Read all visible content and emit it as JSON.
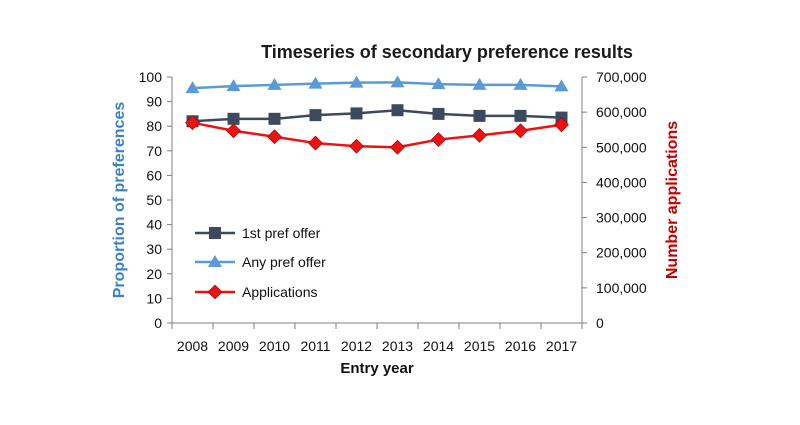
{
  "chart_data": {
    "type": "line",
    "title": "Timeseries of secondary preference results",
    "xlabel": "Entry year",
    "ylabel_left": "Proportion of preferences",
    "ylabel_right": "Number applications",
    "categories": [
      "2008",
      "2009",
      "2010",
      "2011",
      "2012",
      "2013",
      "2014",
      "2015",
      "2016",
      "2017"
    ],
    "ylim_left": [
      0,
      100
    ],
    "yticks_left": [
      "0",
      "10",
      "20",
      "30",
      "40",
      "50",
      "60",
      "70",
      "80",
      "90",
      "100"
    ],
    "ylim_right": [
      0,
      700000
    ],
    "yticks_right": [
      "0",
      "100,000",
      "200,000",
      "300,000",
      "400,000",
      "500,000",
      "600,000",
      "700,000"
    ],
    "grid": false,
    "legend_position": "left-lower",
    "series": [
      {
        "name": "1st pref offer",
        "axis": "left",
        "color": "#3d4a5e",
        "marker": "square",
        "values": [
          82,
          83,
          83,
          84.5,
          85.2,
          86.5,
          85,
          84.2,
          84.2,
          83.5
        ]
      },
      {
        "name": "Any pref offer",
        "axis": "left",
        "color": "#5b9bd5",
        "marker": "triangle",
        "values": [
          95.5,
          96.3,
          96.8,
          97.3,
          97.7,
          97.8,
          97.1,
          96.8,
          96.8,
          96.2
        ]
      },
      {
        "name": "Applications",
        "axis": "right",
        "color": "#ee1111",
        "marker": "diamond",
        "values": [
          570000,
          547000,
          530000,
          512000,
          503000,
          500000,
          522000,
          534000,
          547000,
          564000
        ]
      }
    ]
  }
}
